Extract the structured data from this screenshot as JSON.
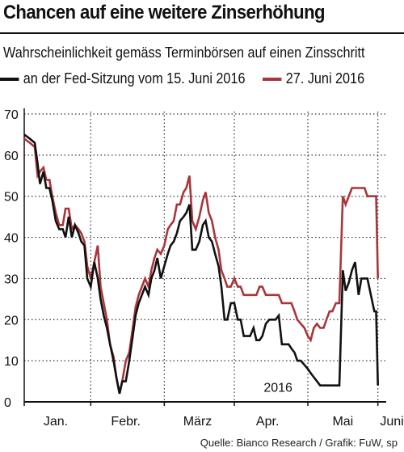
{
  "title": "Chancen auf eine weitere Zinserhöhung",
  "subtitle": "Wahrscheinlichkeit gemäss Terminbörsen auf einen Zinsschritt",
  "source": "Quelle: Bianco Research / Grafik: FuW, sp",
  "chart_data": {
    "type": "line",
    "title": "Chancen auf eine weitere Zinserhöhung",
    "subtitle": "Wahrscheinlichkeit gemäss Terminbörsen auf einen Zinsschritt",
    "year_label": "2016",
    "xlabel": "",
    "ylabel": "",
    "ylim": [
      0,
      70
    ],
    "yticks": [
      0,
      10,
      20,
      30,
      40,
      50,
      60,
      70
    ],
    "xlim": [
      0,
      10.2
    ],
    "month_labels": [
      "Jan.",
      "Febr.",
      "März",
      "Apr.",
      "Mai",
      "Juni"
    ],
    "month_positions": [
      0.9,
      2.9,
      4.95,
      6.95,
      9.1,
      10.5
    ],
    "grid": true,
    "legend_position": "top",
    "series": [
      {
        "name": "an der Fed-Sitzung vom 15. Juni 2016",
        "color": "#111111",
        "x": [
          0,
          0.16,
          0.3,
          0.38,
          0.45,
          0.55,
          0.63,
          0.72,
          0.8,
          0.9,
          1.0,
          1.1,
          1.18,
          1.27,
          1.36,
          1.45,
          1.55,
          1.63,
          1.72,
          1.8,
          1.9,
          2.0,
          2.1,
          2.18,
          2.27,
          2.36,
          2.45,
          2.55,
          2.63,
          2.72,
          2.8,
          2.9,
          3.0,
          3.1,
          3.18,
          3.27,
          3.36,
          3.45,
          3.55,
          3.63,
          3.72,
          3.8,
          3.9,
          4.0,
          4.1,
          4.18,
          4.27,
          4.36,
          4.45,
          4.55,
          4.63,
          4.72,
          4.8,
          4.9,
          5.0,
          5.1,
          5.18,
          5.27,
          5.36,
          5.45,
          5.55,
          5.63,
          5.72,
          5.8,
          5.9,
          6.0,
          6.1,
          6.18,
          6.27,
          6.36,
          6.45,
          6.55,
          6.63,
          6.72,
          6.8,
          6.9,
          7.0,
          7.1,
          7.18,
          7.27,
          7.36,
          7.45,
          7.55,
          7.63,
          7.72,
          7.8,
          7.9,
          8.0,
          8.1,
          8.18,
          8.27,
          8.36,
          8.45,
          8.55,
          8.63,
          8.72,
          8.8,
          8.9,
          9.0,
          9.1,
          9.18,
          9.27,
          9.36,
          9.45,
          9.55,
          9.63,
          9.72,
          9.8,
          9.9,
          10.0,
          10.05,
          10.1
        ],
        "values": [
          65,
          64,
          63,
          58,
          53,
          56,
          52,
          52,
          49,
          44,
          42,
          42,
          40,
          45,
          40,
          43,
          41,
          39,
          38,
          30,
          28,
          34,
          30,
          25,
          21,
          18,
          14,
          10,
          6,
          2,
          5,
          5,
          10,
          16,
          21,
          24,
          26,
          28,
          26,
          30,
          32,
          35,
          30,
          33,
          36,
          38,
          39,
          41,
          44,
          45,
          46,
          48,
          37,
          37,
          39,
          43,
          44,
          40,
          39,
          36,
          33,
          28,
          20,
          20,
          24,
          24,
          20,
          20,
          16,
          16,
          16,
          18,
          15,
          15,
          16,
          19,
          20,
          20,
          20,
          21,
          14,
          14,
          14,
          13,
          12,
          10,
          10,
          9,
          8,
          7,
          6,
          5,
          4,
          4,
          4,
          4,
          4,
          4,
          4,
          32,
          27,
          29,
          32,
          34,
          26,
          30,
          30,
          30,
          26,
          22,
          22,
          4
        ]
      },
      {
        "name": "27. Juni 2016",
        "color": "#a8363a",
        "x": [
          0,
          0.16,
          0.3,
          0.38,
          0.45,
          0.55,
          0.63,
          0.72,
          0.8,
          0.9,
          1.0,
          1.1,
          1.18,
          1.27,
          1.36,
          1.45,
          1.55,
          1.63,
          1.72,
          1.8,
          1.9,
          2.0,
          2.1,
          2.18,
          2.27,
          2.36,
          2.45,
          2.55,
          2.63,
          2.72,
          2.8,
          2.9,
          3.0,
          3.1,
          3.18,
          3.27,
          3.36,
          3.45,
          3.55,
          3.63,
          3.72,
          3.8,
          3.9,
          4.0,
          4.1,
          4.18,
          4.27,
          4.36,
          4.45,
          4.55,
          4.63,
          4.72,
          4.8,
          4.9,
          5.0,
          5.1,
          5.18,
          5.27,
          5.36,
          5.45,
          5.55,
          5.63,
          5.72,
          5.8,
          5.9,
          6.0,
          6.1,
          6.18,
          6.27,
          6.36,
          6.45,
          6.55,
          6.63,
          6.72,
          6.8,
          6.9,
          7.0,
          7.1,
          7.18,
          7.27,
          7.36,
          7.45,
          7.55,
          7.63,
          7.72,
          7.8,
          7.9,
          8.0,
          8.1,
          8.18,
          8.27,
          8.36,
          8.45,
          8.55,
          8.63,
          8.72,
          8.8,
          8.9,
          9.0,
          9.1,
          9.18,
          9.27,
          9.36,
          9.45,
          9.55,
          9.63,
          9.72,
          9.8,
          9.9,
          10.0,
          10.05,
          10.1
        ],
        "values": [
          64,
          63,
          62,
          55,
          56,
          57,
          54,
          54,
          50,
          46,
          43,
          43,
          47,
          47,
          42,
          43,
          42,
          41,
          39,
          33,
          30,
          34,
          38,
          28,
          24,
          20,
          14,
          11,
          6,
          2,
          5,
          10,
          12,
          18,
          23,
          26,
          28,
          30,
          28,
          32,
          35,
          37,
          36,
          38,
          42,
          43,
          44,
          48,
          48,
          51,
          52,
          55,
          44,
          42,
          45,
          49,
          51,
          46,
          44,
          40,
          37,
          32,
          30,
          28,
          28,
          30,
          28,
          28,
          26,
          26,
          26,
          26,
          26,
          28,
          28,
          26,
          26,
          26,
          26,
          26,
          24,
          24,
          24,
          24,
          22,
          20,
          19,
          18,
          16,
          15,
          18,
          19,
          18,
          18,
          20,
          22,
          22,
          24,
          24,
          50,
          48,
          50,
          52,
          52,
          52,
          52,
          52,
          50,
          50,
          50,
          50,
          30
        ]
      }
    ]
  }
}
